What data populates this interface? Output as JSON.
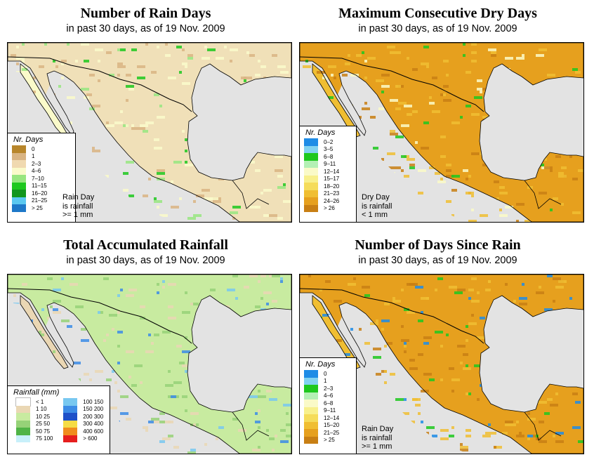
{
  "subtitle": "in past 30 days, as of  19 Nov. 2009",
  "panels": {
    "rain_days": {
      "title": "Number of Rain Days",
      "legend_title": "Nr. Days",
      "legend": [
        {
          "label": "0",
          "color": "#b8862b"
        },
        {
          "label": "1",
          "color": "#d9b483"
        },
        {
          "label": "2–3",
          "color": "#f0d9b0"
        },
        {
          "label": "4–6",
          "color": "#fafaca"
        },
        {
          "label": "7–10",
          "color": "#98e680"
        },
        {
          "label": "11–15",
          "color": "#1ec81e"
        },
        {
          "label": "16–20",
          "color": "#12961e"
        },
        {
          "label": "21–25",
          "color": "#5ac8f0"
        },
        {
          "label": "> 25",
          "color": "#1e78c8"
        }
      ],
      "note": [
        "Rain Day",
        "is rainfall",
        ">= 1 mm"
      ]
    },
    "dry_days": {
      "title": "Maximum Consecutive Dry Days",
      "legend_title": "Nr. Days",
      "legend": [
        {
          "label": "0–2",
          "color": "#1e8ce6"
        },
        {
          "label": "3–5",
          "color": "#82d2f0"
        },
        {
          "label": "6–8",
          "color": "#1ec81e"
        },
        {
          "label": "9–11",
          "color": "#b4f0b4"
        },
        {
          "label": "12–14",
          "color": "#fafac8"
        },
        {
          "label": "15–17",
          "color": "#f8f08c"
        },
        {
          "label": "18–20",
          "color": "#f5dc5a"
        },
        {
          "label": "21–23",
          "color": "#f0be32"
        },
        {
          "label": "24–26",
          "color": "#e6a01e"
        },
        {
          "label": "> 26",
          "color": "#c87f14"
        }
      ],
      "note": [
        "Dry Day",
        "is rainfall",
        "< 1 mm"
      ]
    },
    "total_rain": {
      "title": "Total Accumulated Rainfall",
      "legend_title": "Rainfall (mm)",
      "legend_left": [
        {
          "label": "< 1",
          "color": "#ffffff"
        },
        {
          "label": "1   10",
          "color": "#ead7b4"
        },
        {
          "label": "10   25",
          "color": "#c8eba0"
        },
        {
          "label": "25   50",
          "color": "#96d278"
        },
        {
          "label": "50   75",
          "color": "#50b446"
        },
        {
          "label": "75   100",
          "color": "#c8f0fa"
        }
      ],
      "legend_right": [
        {
          "label": "100  150",
          "color": "#78c8f0"
        },
        {
          "label": "150  200",
          "color": "#3c8ce6"
        },
        {
          "label": "200  300",
          "color": "#1e50c8"
        },
        {
          "label": "300  400",
          "color": "#f5dc46"
        },
        {
          "label": "400  600",
          "color": "#f08c1e"
        },
        {
          "label": "> 600",
          "color": "#e61e1e"
        }
      ]
    },
    "since_rain": {
      "title": "Number of Days Since Rain",
      "legend_title": "Nr. Days",
      "legend": [
        {
          "label": "0",
          "color": "#1e8ce6"
        },
        {
          "label": "1",
          "color": "#82d2f0"
        },
        {
          "label": "2–3",
          "color": "#1ec81e"
        },
        {
          "label": "4–6",
          "color": "#b4f0b4"
        },
        {
          "label": "6–8",
          "color": "#fafac8"
        },
        {
          "label": "9–11",
          "color": "#f8f08c"
        },
        {
          "label": "12–14",
          "color": "#f5dc5a"
        },
        {
          "label": "15–20",
          "color": "#f0be32"
        },
        {
          "label": "21–25",
          "color": "#e6a01e"
        },
        {
          "label": "> 25",
          "color": "#c87f14"
        }
      ],
      "note": [
        "Rain Day",
        "is rainfall",
        ">= 1 mm"
      ]
    }
  },
  "map_colors": {
    "sea": "#e3e3e3",
    "rain_days": {
      "base": "#f0e0b8",
      "alt": "#fafaca",
      "dark": "#d9b483",
      "patch": "#1ec81e",
      "patch2": "#98e680"
    },
    "dry_days": {
      "base": "#e6a01e",
      "alt": "#f0be32",
      "dark": "#c87f14",
      "patch": "#1ec81e",
      "patch2": "#fafac8"
    },
    "total_rain": {
      "base": "#c8eba0",
      "alt": "#ead7b4",
      "dark": "#96d278",
      "patch": "#3c8ce6",
      "patch2": "#78c8f0"
    },
    "since_rain": {
      "base": "#e6a01e",
      "alt": "#f0be32",
      "dark": "#c87f14",
      "patch": "#1ec81e",
      "patch2": "#1e8ce6"
    }
  }
}
